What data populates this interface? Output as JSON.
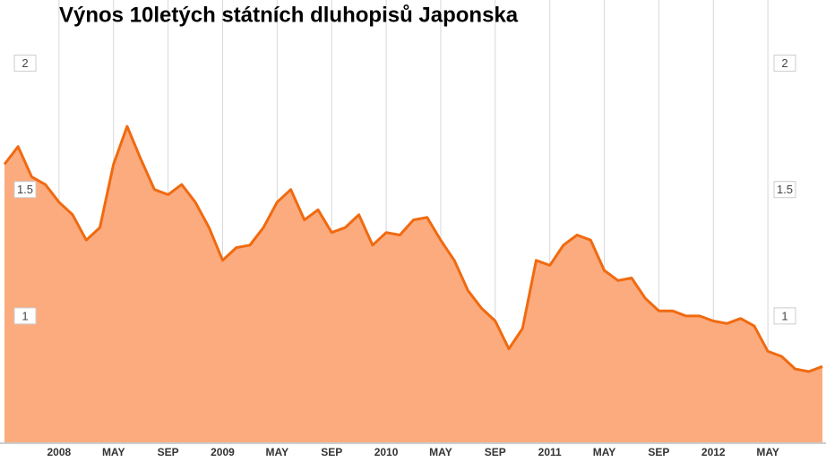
{
  "chart_data": {
    "type": "area",
    "title": "Výnos 10letých státních dluhopisů Japonska",
    "categories": [
      null,
      null,
      null,
      null,
      "2008",
      null,
      null,
      null,
      "MAY",
      null,
      null,
      null,
      "SEP",
      null,
      null,
      null,
      "2009",
      null,
      null,
      null,
      "MAY",
      null,
      null,
      null,
      "SEP",
      null,
      null,
      null,
      "2010",
      null,
      null,
      null,
      "MAY",
      null,
      null,
      null,
      "SEP",
      null,
      null,
      null,
      "2011",
      null,
      null,
      null,
      "MAY",
      null,
      null,
      null,
      "SEP",
      null,
      null,
      null,
      "2012",
      null,
      null,
      null,
      "MAY",
      null,
      null,
      null,
      null
    ],
    "values": [
      1.6,
      1.67,
      1.55,
      1.52,
      1.45,
      1.4,
      1.3,
      1.35,
      1.6,
      1.75,
      1.62,
      1.5,
      1.48,
      1.52,
      1.45,
      1.35,
      1.22,
      1.27,
      1.28,
      1.35,
      1.45,
      1.5,
      1.38,
      1.42,
      1.33,
      1.35,
      1.4,
      1.28,
      1.33,
      1.32,
      1.38,
      1.39,
      1.3,
      1.22,
      1.1,
      1.03,
      0.98,
      0.87,
      0.95,
      1.22,
      1.2,
      1.28,
      1.32,
      1.3,
      1.18,
      1.14,
      1.15,
      1.07,
      1.02,
      1.02,
      1.0,
      1.0,
      0.98,
      0.97,
      0.99,
      0.96,
      0.86,
      0.84,
      0.79,
      0.78,
      0.8
    ],
    "color": "#f06a10",
    "fill": "#fcab7e",
    "ylim": [
      0.5,
      2.25
    ],
    "yticks": [
      1,
      1.5,
      2
    ],
    "grid": true
  }
}
